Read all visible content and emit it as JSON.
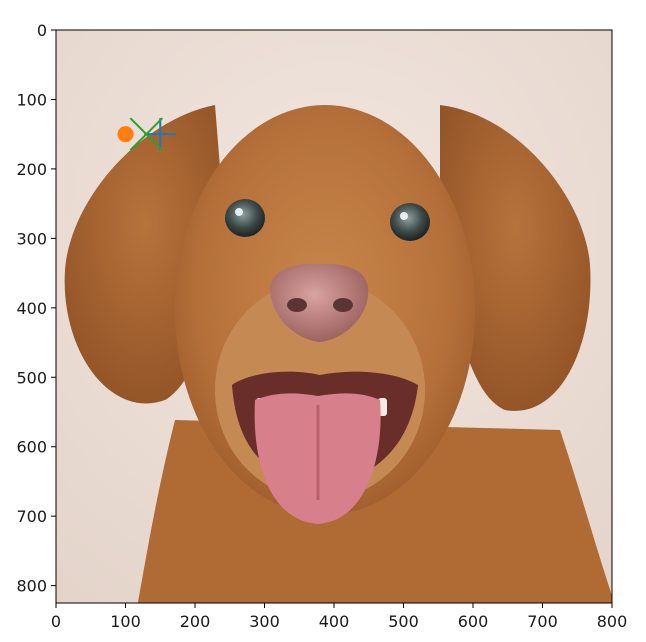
{
  "chart_data": {
    "type": "scatter",
    "title": "",
    "xlabel": "",
    "ylabel": "",
    "xlim": [
      0,
      800
    ],
    "ylim": [
      825,
      0
    ],
    "xticks": [
      0,
      100,
      200,
      300,
      400,
      500,
      600,
      700,
      800
    ],
    "yticks": [
      0,
      100,
      200,
      300,
      400,
      500,
      600,
      700,
      800
    ],
    "grid": false,
    "background_image": "dog-photo",
    "series": [
      {
        "marker": "plus",
        "color": "#1f77b4",
        "points": [
          {
            "x": 150,
            "y": 150
          }
        ]
      },
      {
        "marker": "circle",
        "color": "#ff7f0e",
        "points": [
          {
            "x": 100,
            "y": 150
          }
        ]
      },
      {
        "marker": "x",
        "color": "#2ca02c",
        "points": [
          {
            "x": 130,
            "y": 150
          }
        ]
      }
    ]
  }
}
